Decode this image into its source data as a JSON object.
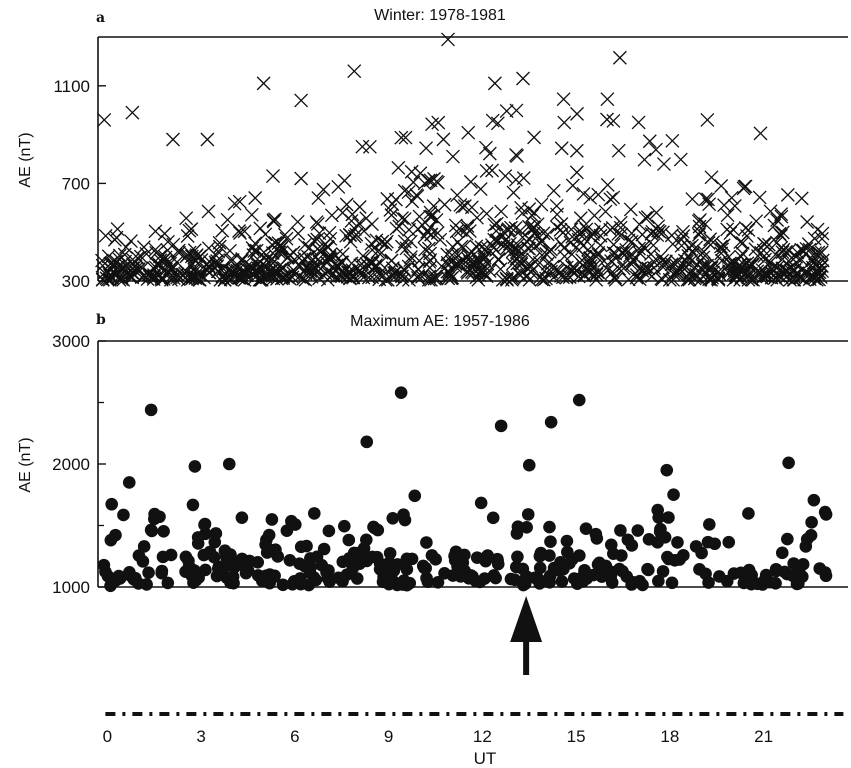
{
  "chart_data": [
    {
      "type": "scatter",
      "panel_label": "a",
      "title": "Winter: 1978-1981",
      "ylabel": "AE (nT)",
      "xlabel": "",
      "xlim": [
        -0.3,
        23.7
      ],
      "ylim": [
        300,
        1300
      ],
      "yticks": [
        300,
        700,
        1100
      ],
      "ytick_labels": [
        "300",
        "700",
        "1100"
      ],
      "marker": "x",
      "grid": false,
      "notable_points": [
        {
          "x": 10.9,
          "y": 1290
        },
        {
          "x": 16.4,
          "y": 1215
        },
        {
          "x": 7.9,
          "y": 1160
        },
        {
          "x": 13.3,
          "y": 1130
        },
        {
          "x": 5.0,
          "y": 1110
        },
        {
          "x": 12.4,
          "y": 1110
        },
        {
          "x": 6.2,
          "y": 1040
        },
        {
          "x": 14.6,
          "y": 1045
        },
        {
          "x": 16.0,
          "y": 1045
        },
        {
          "x": 0.8,
          "y": 990
        },
        {
          "x": -0.1,
          "y": 960
        },
        {
          "x": 17.0,
          "y": 950
        },
        {
          "x": 19.2,
          "y": 960
        },
        {
          "x": 20.9,
          "y": 905
        },
        {
          "x": 2.1,
          "y": 880
        },
        {
          "x": 3.2,
          "y": 880
        },
        {
          "x": 8.4,
          "y": 850
        },
        {
          "x": 5.3,
          "y": 730
        },
        {
          "x": 6.2,
          "y": 720
        }
      ],
      "point_cloud": {
        "count": 1100,
        "x_range": [
          -0.2,
          22.9
        ],
        "y_range": [
          300,
          1000
        ],
        "description": "dense band concentrated at low AE, densest near 300-550 nT, peaking around 12-16 UT"
      }
    },
    {
      "type": "scatter",
      "panel_label": "b",
      "title": "Maximum AE: 1957-1986",
      "ylabel": "AE (nT)",
      "xlabel": "UT",
      "xlim": [
        -0.3,
        23.7
      ],
      "ylim": [
        1000,
        3000
      ],
      "yticks": [
        1000,
        2000,
        3000
      ],
      "ytick_labels": [
        "1000",
        "2000",
        "3000"
      ],
      "minor_yticks": [
        1500,
        2500
      ],
      "xticks": [
        0,
        3,
        6,
        9,
        12,
        15,
        18,
        21
      ],
      "xtick_labels": [
        "0",
        "3",
        "6",
        "9",
        "12",
        "15",
        "18",
        "21"
      ],
      "marker": "filled-circle",
      "grid": false,
      "notable_points": [
        {
          "x": 9.4,
          "y": 2580
        },
        {
          "x": 15.1,
          "y": 2520
        },
        {
          "x": 1.4,
          "y": 2440
        },
        {
          "x": 14.2,
          "y": 2340
        },
        {
          "x": 12.6,
          "y": 2310
        },
        {
          "x": 8.3,
          "y": 2180
        },
        {
          "x": 21.8,
          "y": 2010
        },
        {
          "x": 3.9,
          "y": 2000
        },
        {
          "x": 13.5,
          "y": 1990
        },
        {
          "x": 2.8,
          "y": 1980
        },
        {
          "x": 17.9,
          "y": 1950
        },
        {
          "x": 0.1,
          "y": 1010
        },
        {
          "x": 0.7,
          "y": 1850
        },
        {
          "x": 23.0,
          "y": 1590
        }
      ],
      "point_cloud": {
        "count": 340,
        "x_range": [
          -0.2,
          23.0
        ],
        "y_range": [
          1000,
          1950
        ],
        "description": "filled circles spread across all UT, mostly between 1000 and 1700 nT"
      },
      "arrow_marker": {
        "x": 13.4,
        "direction": "up"
      },
      "bottom_bar": {
        "style": "dash-dot",
        "x_range": [
          0,
          24
        ]
      }
    }
  ]
}
